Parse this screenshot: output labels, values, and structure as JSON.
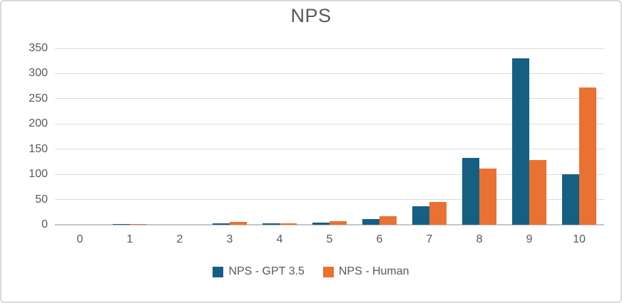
{
  "chart_data": {
    "type": "bar",
    "title": "NPS",
    "categories": [
      "0",
      "1",
      "2",
      "3",
      "4",
      "5",
      "6",
      "7",
      "8",
      "9",
      "10"
    ],
    "series": [
      {
        "name": "NPS - GPT 3.5",
        "color": "#156082",
        "values": [
          0,
          2,
          0,
          3,
          3,
          4,
          11,
          37,
          132,
          330,
          100
        ]
      },
      {
        "name": "NPS - Human",
        "color": "#E97132",
        "values": [
          0,
          1,
          0,
          6,
          3,
          7,
          17,
          45,
          111,
          128,
          273
        ]
      }
    ],
    "xlabel": "",
    "ylabel": "",
    "ylim": [
      0,
      350
    ],
    "ytick_step": 50,
    "grid": true,
    "legend_position": "bottom"
  },
  "colors": {
    "text": "#595959",
    "gridline": "#dbdbdb",
    "axis_line": "#c6c6c6",
    "frame_border": "#d9d9d9",
    "background": "#ffffff"
  }
}
